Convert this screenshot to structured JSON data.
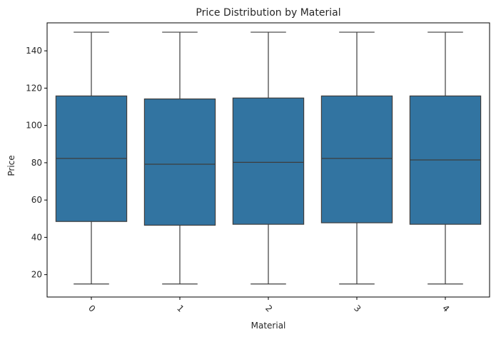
{
  "chart_data": {
    "type": "box",
    "title": "Price Distribution by Material",
    "xlabel": "Material",
    "ylabel": "Price",
    "categories": [
      "0",
      "1",
      "2",
      "3",
      "4"
    ],
    "ylim": [
      8,
      155
    ],
    "yticks": [
      20,
      40,
      60,
      80,
      100,
      120,
      140
    ],
    "x_tick_rotation_deg": 45,
    "grid": false,
    "legend": "none",
    "box_color": "#3274a1",
    "line_color": "#3d3d3d",
    "boxes": [
      {
        "category": "0",
        "whisker_low": 15,
        "q1": 48.5,
        "median": 82.3,
        "q3": 115.8,
        "whisker_high": 150
      },
      {
        "category": "1",
        "whisker_low": 15,
        "q1": 46.5,
        "median": 79.2,
        "q3": 114.2,
        "whisker_high": 150
      },
      {
        "category": "2",
        "whisker_low": 15,
        "q1": 47.0,
        "median": 80.2,
        "q3": 114.7,
        "whisker_high": 150
      },
      {
        "category": "3",
        "whisker_low": 15,
        "q1": 47.8,
        "median": 82.3,
        "q3": 115.8,
        "whisker_high": 150
      },
      {
        "category": "4",
        "whisker_low": 15,
        "q1": 47.0,
        "median": 81.5,
        "q3": 115.8,
        "whisker_high": 150
      }
    ]
  }
}
